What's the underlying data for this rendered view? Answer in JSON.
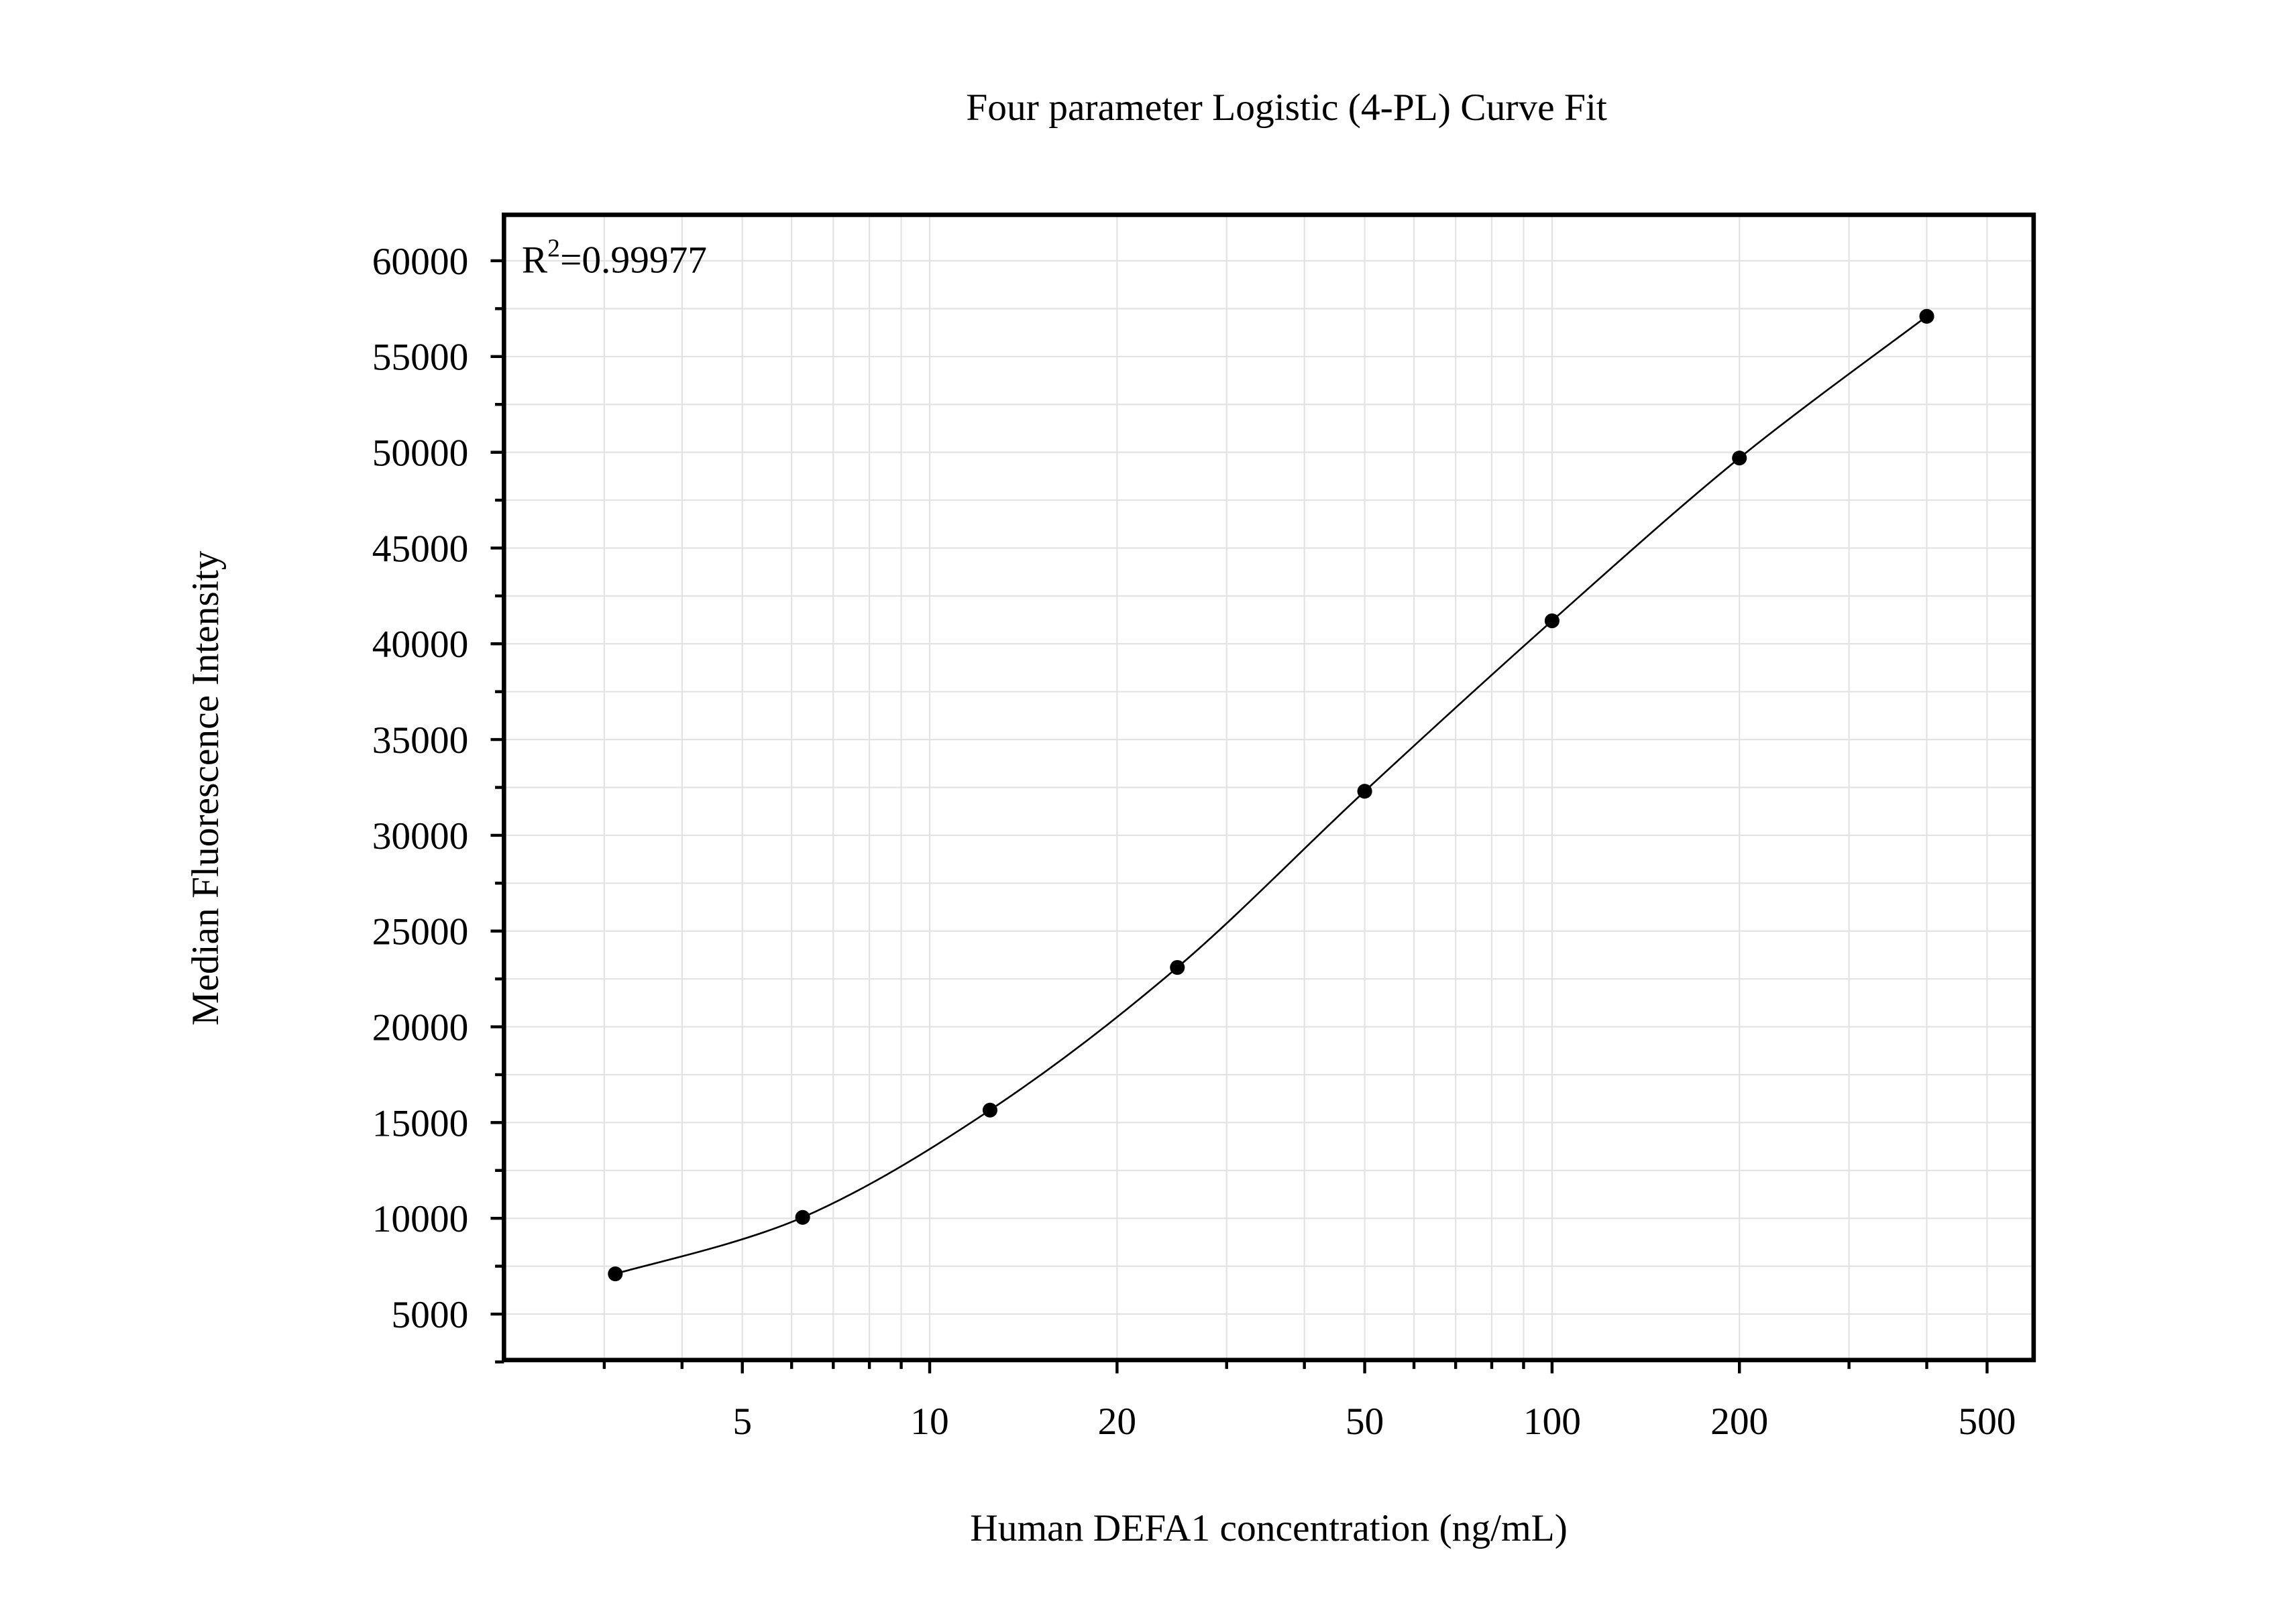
{
  "chart_data": {
    "type": "scatter",
    "title": "Four parameter Logistic (4-PL) Curve Fit",
    "xlabel": "Human DEFA1 concentration (ng/mL)",
    "ylabel": "Median Fluorescence Intensity",
    "annotation": {
      "base": "R",
      "sup": "2",
      "value": "=0.99977"
    },
    "x_scale": "log",
    "xlim": [
      2.07,
      594
    ],
    "ylim": [
      2600,
      62400
    ],
    "x_ticks": [
      5,
      10,
      20,
      50,
      100,
      200,
      500
    ],
    "x_tick_labels": [
      "5",
      "10",
      "20",
      "50",
      "100",
      "200",
      "500"
    ],
    "y_ticks": [
      5000,
      10000,
      15000,
      20000,
      25000,
      30000,
      35000,
      40000,
      45000,
      50000,
      55000,
      60000
    ],
    "y_tick_labels": [
      "5000",
      "10000",
      "15000",
      "20000",
      "25000",
      "30000",
      "35000",
      "40000",
      "45000",
      "50000",
      "55000",
      "60000"
    ],
    "grid": true,
    "series": [
      {
        "x": [
          3.125,
          6.25,
          12.5,
          25,
          50,
          100,
          200,
          400
        ],
        "y": [
          7100,
          10050,
          15650,
          23100,
          32300,
          41200,
          49700,
          57100
        ],
        "marker": "circle",
        "fit_line": "4-PL curve",
        "color": "#000000"
      }
    ]
  }
}
